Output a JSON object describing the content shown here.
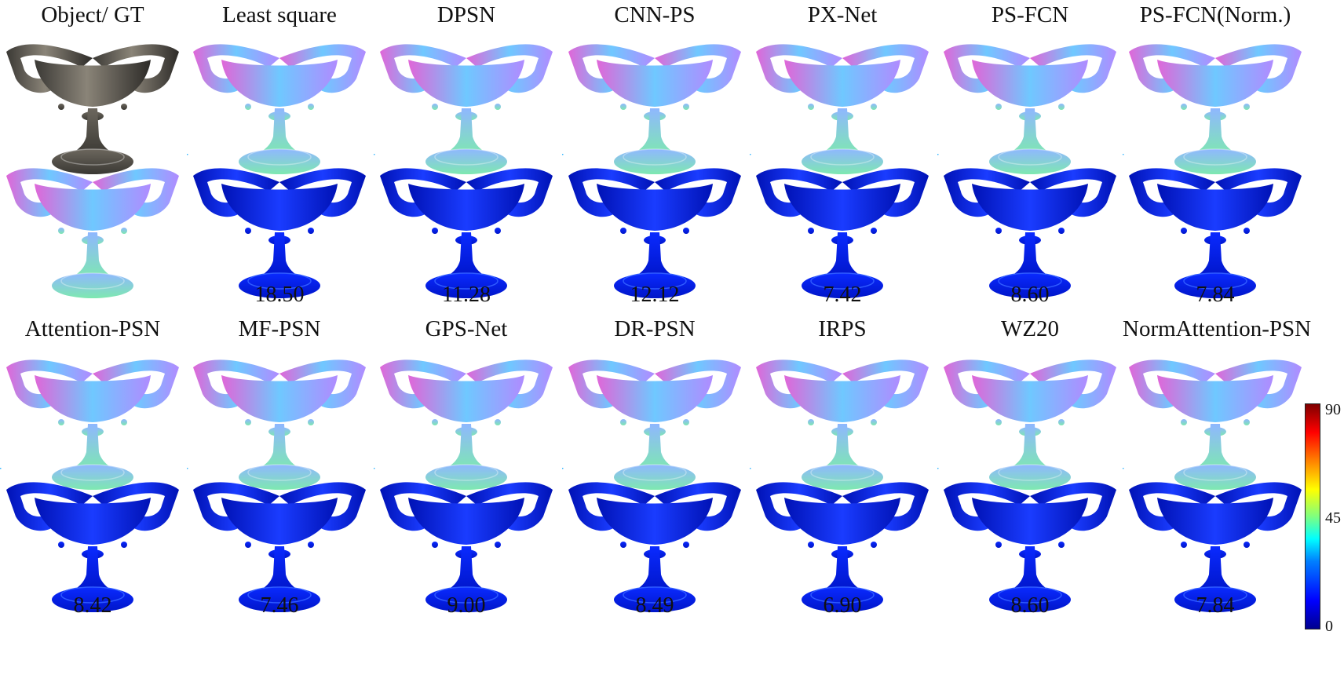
{
  "panels_top": [
    {
      "label": "Object/ GT",
      "error": ""
    },
    {
      "label": "Least square",
      "error": "18.50"
    },
    {
      "label": "DPSN",
      "error": "11.28"
    },
    {
      "label": "CNN-PS",
      "error": "12.12"
    },
    {
      "label": "PX-Net",
      "error": "7.42"
    },
    {
      "label": "PS-FCN",
      "error": "8.60"
    },
    {
      "label": "PS-FCN(Norm.)",
      "error": "7.84"
    }
  ],
  "panels_bottom": [
    {
      "label": "Attention-PSN",
      "error": "8.42"
    },
    {
      "label": "MF-PSN",
      "error": "7.46"
    },
    {
      "label": "GPS-Net",
      "error": "9.00"
    },
    {
      "label": "DR-PSN",
      "error": "8.49"
    },
    {
      "label": "IRPS",
      "error": "6.90"
    },
    {
      "label": "WZ20",
      "error": "8.60"
    },
    {
      "label": "NormAttention-PSN",
      "error": "7.84"
    }
  ],
  "colorbar": {
    "ticks": [
      "90",
      "45",
      "0"
    ]
  },
  "colors": {
    "error_low": "#0018c8",
    "error_mid": "#1f66ff",
    "normal_left": "#e36ad6",
    "normal_right": "#9a8cff",
    "normal_bottom": "#7fe0b4",
    "object": "#6f6a60"
  }
}
